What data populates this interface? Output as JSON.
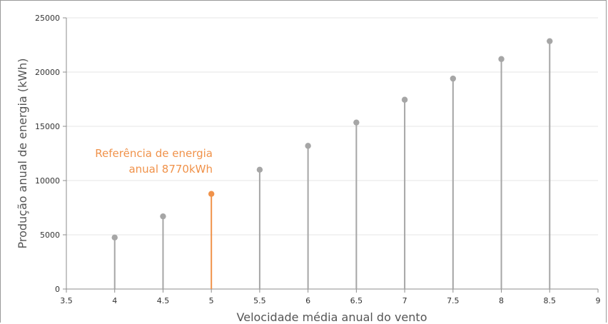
{
  "chart_data": {
    "type": "scatter",
    "style": "lollipop",
    "title": "",
    "xlabel": "Velocidade média anual do vento",
    "ylabel": "Produção anual de energia (kWh)",
    "xlim": [
      3.5,
      9
    ],
    "ylim": [
      0,
      25000
    ],
    "x_ticks": [
      "3.5",
      "4",
      "4.5",
      "5",
      "5.5",
      "6",
      "6.5",
      "7",
      "7.5",
      "8",
      "8.5",
      "9"
    ],
    "y_ticks": [
      "0",
      "5000",
      "10000",
      "15000",
      "20000",
      "25000"
    ],
    "grid": "horizontal",
    "series": [
      {
        "x": [
          4,
          4.5,
          5,
          5.5,
          6,
          6.5,
          7,
          7.5,
          8,
          8.5
        ],
        "y": [
          4750,
          6700,
          8770,
          11000,
          13200,
          15350,
          17450,
          19400,
          21200,
          22850
        ],
        "highlight_index": 2
      }
    ],
    "colors": {
      "default": "#a6a6a6",
      "highlight": "#f0924a",
      "grid": "#e4e4e4",
      "axis": "#8c8c8c"
    },
    "annotations": [
      {
        "lines": [
          "Referência de energia",
          "anual 8770kWh"
        ],
        "x": 5
      }
    ]
  }
}
